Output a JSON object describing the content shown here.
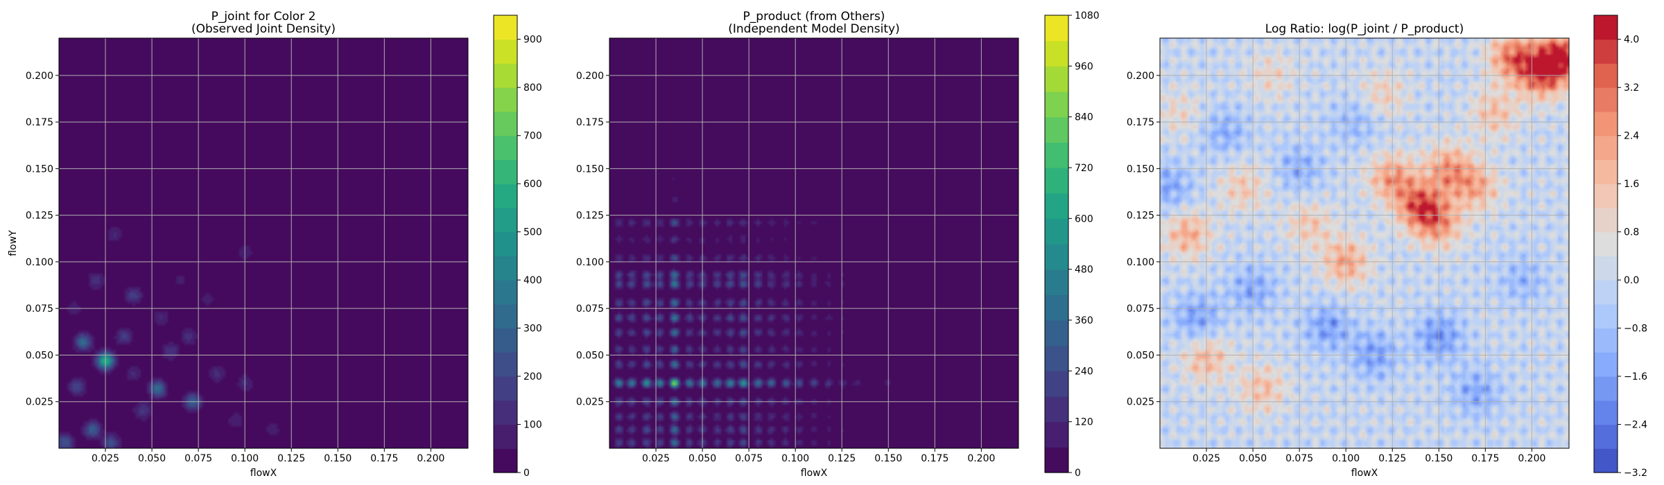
{
  "chart_data": [
    {
      "type": "heatmap",
      "title": "P_joint for Color 2\n(Observed Joint Density)",
      "xlabel": "flowX",
      "ylabel": "flowY",
      "xlim": [
        0.0,
        0.22
      ],
      "ylim": [
        0.0,
        0.22
      ],
      "xticks": [
        0.025,
        0.05,
        0.075,
        0.1,
        0.125,
        0.15,
        0.175,
        0.2
      ],
      "xtick_labels": [
        "0.025",
        "0.050",
        "0.075",
        "0.100",
        "0.125",
        "0.150",
        "0.175",
        "0.200"
      ],
      "yticks": [
        0.025,
        0.05,
        0.075,
        0.1,
        0.125,
        0.15,
        0.175,
        0.2
      ],
      "ytick_labels": [
        "0.025",
        "0.050",
        "0.075",
        "0.100",
        "0.125",
        "0.150",
        "0.175",
        "0.200"
      ],
      "grid": true,
      "colormap": "viridis",
      "colorbar": {
        "min": 0,
        "max": 950,
        "ticks": [
          0,
          100,
          200,
          300,
          400,
          500,
          600,
          700,
          800,
          900
        ],
        "tick_labels": [
          "0",
          "100",
          "200",
          "300",
          "400",
          "500",
          "600",
          "700",
          "800",
          "900"
        ],
        "levels": 19
      },
      "peaks": [
        {
          "x": 0.025,
          "y": 0.047,
          "value": 600
        },
        {
          "x": 0.013,
          "y": 0.057,
          "value": 320
        },
        {
          "x": 0.053,
          "y": 0.032,
          "value": 330
        },
        {
          "x": 0.072,
          "y": 0.025,
          "value": 300
        },
        {
          "x": 0.018,
          "y": 0.01,
          "value": 280
        },
        {
          "x": 0.003,
          "y": 0.003,
          "value": 260
        },
        {
          "x": 0.028,
          "y": 0.003,
          "value": 220
        },
        {
          "x": 0.01,
          "y": 0.033,
          "value": 200
        },
        {
          "x": 0.04,
          "y": 0.082,
          "value": 180
        },
        {
          "x": 0.035,
          "y": 0.06,
          "value": 170
        },
        {
          "x": 0.06,
          "y": 0.052,
          "value": 150
        },
        {
          "x": 0.045,
          "y": 0.02,
          "value": 160
        },
        {
          "x": 0.02,
          "y": 0.09,
          "value": 140
        },
        {
          "x": 0.03,
          "y": 0.115,
          "value": 110
        },
        {
          "x": 0.07,
          "y": 0.06,
          "value": 130
        },
        {
          "x": 0.085,
          "y": 0.04,
          "value": 120
        },
        {
          "x": 0.1,
          "y": 0.035,
          "value": 110
        },
        {
          "x": 0.095,
          "y": 0.015,
          "value": 100
        },
        {
          "x": 0.055,
          "y": 0.07,
          "value": 110
        },
        {
          "x": 0.1,
          "y": 0.105,
          "value": 90
        },
        {
          "x": 0.065,
          "y": 0.09,
          "value": 70
        },
        {
          "x": 0.08,
          "y": 0.08,
          "value": 80
        },
        {
          "x": 0.115,
          "y": 0.01,
          "value": 80
        },
        {
          "x": 0.008,
          "y": 0.075,
          "value": 90
        },
        {
          "x": 0.04,
          "y": 0.04,
          "value": 110
        }
      ]
    },
    {
      "type": "heatmap",
      "title": "P_product (from Others)\n(Independent Model Density)",
      "xlabel": "flowX",
      "ylabel": "",
      "xlim": [
        0.0,
        0.22
      ],
      "ylim": [
        0.0,
        0.22
      ],
      "xticks": [
        0.025,
        0.05,
        0.075,
        0.1,
        0.125,
        0.15,
        0.175,
        0.2
      ],
      "xtick_labels": [
        "0.025",
        "0.050",
        "0.075",
        "0.100",
        "0.125",
        "0.150",
        "0.175",
        "0.200"
      ],
      "yticks": [
        0.025,
        0.05,
        0.075,
        0.1,
        0.125,
        0.15,
        0.175,
        0.2
      ],
      "ytick_labels": [
        "0.025",
        "0.050",
        "0.075",
        "0.100",
        "0.125",
        "0.150",
        "0.175",
        "0.200"
      ],
      "grid": true,
      "colormap": "viridis",
      "colorbar": {
        "min": 0,
        "max": 1080,
        "ticks": [
          0,
          120,
          240,
          360,
          480,
          600,
          720,
          840,
          960,
          1080
        ],
        "tick_labels": [
          "0",
          "120",
          "240",
          "360",
          "480",
          "600",
          "720",
          "840",
          "960",
          "1080"
        ],
        "levels": 18
      },
      "x_marginal_peaks": [
        {
          "x": 0.005,
          "weight": 0.55
        },
        {
          "x": 0.012,
          "weight": 0.5
        },
        {
          "x": 0.02,
          "weight": 0.6
        },
        {
          "x": 0.027,
          "weight": 0.55
        },
        {
          "x": 0.035,
          "weight": 1.0
        },
        {
          "x": 0.043,
          "weight": 0.5
        },
        {
          "x": 0.05,
          "weight": 0.5
        },
        {
          "x": 0.058,
          "weight": 0.45
        },
        {
          "x": 0.065,
          "weight": 0.55
        },
        {
          "x": 0.072,
          "weight": 0.65
        },
        {
          "x": 0.08,
          "weight": 0.45
        },
        {
          "x": 0.087,
          "weight": 0.4
        },
        {
          "x": 0.095,
          "weight": 0.35
        },
        {
          "x": 0.102,
          "weight": 0.3
        },
        {
          "x": 0.11,
          "weight": 0.25
        },
        {
          "x": 0.118,
          "weight": 0.2
        },
        {
          "x": 0.125,
          "weight": 0.15
        },
        {
          "x": 0.133,
          "weight": 0.12
        },
        {
          "x": 0.15,
          "weight": 0.12
        }
      ],
      "y_marginal_peaks": [
        {
          "y": 0.003,
          "weight": 0.45
        },
        {
          "y": 0.01,
          "weight": 0.45
        },
        {
          "y": 0.017,
          "weight": 0.4
        },
        {
          "y": 0.025,
          "weight": 0.45
        },
        {
          "y": 0.035,
          "weight": 1.0
        },
        {
          "y": 0.045,
          "weight": 0.45
        },
        {
          "y": 0.053,
          "weight": 0.4
        },
        {
          "y": 0.062,
          "weight": 0.45
        },
        {
          "y": 0.07,
          "weight": 0.5
        },
        {
          "y": 0.078,
          "weight": 0.45
        },
        {
          "y": 0.088,
          "weight": 0.5
        },
        {
          "y": 0.093,
          "weight": 0.45
        },
        {
          "y": 0.102,
          "weight": 0.3
        },
        {
          "y": 0.112,
          "weight": 0.2
        },
        {
          "y": 0.121,
          "weight": 0.3
        },
        {
          "y": 0.133,
          "weight": 0.1
        },
        {
          "y": 0.145,
          "weight": 0.07
        }
      ],
      "max_value": 1080
    },
    {
      "type": "heatmap",
      "title": "Log Ratio: log(P_joint / P_product)",
      "xlabel": "flowX",
      "ylabel": "",
      "xlim": [
        0.0,
        0.22
      ],
      "ylim": [
        0.0,
        0.22
      ],
      "xticks": [
        0.025,
        0.05,
        0.075,
        0.1,
        0.125,
        0.15,
        0.175,
        0.2
      ],
      "xtick_labels": [
        "0.025",
        "0.050",
        "0.075",
        "0.100",
        "0.125",
        "0.150",
        "0.175",
        "0.200"
      ],
      "yticks": [
        0.025,
        0.05,
        0.075,
        0.1,
        0.125,
        0.15,
        0.175,
        0.2
      ],
      "ytick_labels": [
        "0.025",
        "0.050",
        "0.075",
        "0.100",
        "0.125",
        "0.150",
        "0.175",
        "0.200"
      ],
      "grid": true,
      "colormap": "coolwarm",
      "colorbar": {
        "min": -3.2,
        "max": 4.4,
        "ticks": [
          -3.2,
          -2.4,
          -1.6,
          -0.8,
          0.0,
          0.8,
          1.6,
          2.4,
          3.2,
          4.0
        ],
        "tick_labels": [
          "−3.2",
          "−2.4",
          "−1.6",
          "−0.8",
          "0.0",
          "0.8",
          "1.6",
          "2.4",
          "3.2",
          "4.0"
        ],
        "levels": 19
      },
      "hotspots": [
        {
          "x": 0.215,
          "y": 0.21,
          "value": 3.8
        },
        {
          "x": 0.205,
          "y": 0.2,
          "value": 3.0
        },
        {
          "x": 0.19,
          "y": 0.21,
          "value": 3.0
        },
        {
          "x": 0.14,
          "y": 0.13,
          "value": 3.2
        },
        {
          "x": 0.125,
          "y": 0.145,
          "value": 2.4
        },
        {
          "x": 0.155,
          "y": 0.15,
          "value": 2.4
        },
        {
          "x": 0.15,
          "y": 0.12,
          "value": 2.2
        },
        {
          "x": 0.17,
          "y": 0.14,
          "value": 2.0
        },
        {
          "x": 0.015,
          "y": 0.115,
          "value": 2.0
        },
        {
          "x": 0.1,
          "y": 0.1,
          "value": 2.2
        },
        {
          "x": 0.025,
          "y": 0.048,
          "value": 1.8
        },
        {
          "x": 0.055,
          "y": 0.032,
          "value": 1.6
        },
        {
          "x": 0.045,
          "y": 0.14,
          "value": 1.4
        },
        {
          "x": 0.08,
          "y": 0.12,
          "value": 1.4
        },
        {
          "x": 0.18,
          "y": 0.18,
          "value": 1.6
        },
        {
          "x": 0.01,
          "y": 0.18,
          "value": 0.9
        },
        {
          "x": 0.06,
          "y": 0.2,
          "value": 1.0
        },
        {
          "x": 0.12,
          "y": 0.19,
          "value": 1.2
        },
        {
          "x": 0.02,
          "y": 0.07,
          "value": -1.6
        },
        {
          "x": 0.05,
          "y": 0.085,
          "value": -1.4
        },
        {
          "x": 0.09,
          "y": 0.065,
          "value": -1.6
        },
        {
          "x": 0.15,
          "y": 0.06,
          "value": -1.8
        },
        {
          "x": 0.17,
          "y": 0.03,
          "value": -1.4
        },
        {
          "x": 0.115,
          "y": 0.05,
          "value": -1.6
        },
        {
          "x": 0.035,
          "y": 0.17,
          "value": -1.2
        },
        {
          "x": 0.075,
          "y": 0.15,
          "value": -1.2
        },
        {
          "x": 0.005,
          "y": 0.14,
          "value": -1.4
        },
        {
          "x": 0.195,
          "y": 0.09,
          "value": -1.0
        },
        {
          "x": 0.105,
          "y": 0.175,
          "value": -1.0
        }
      ]
    }
  ]
}
